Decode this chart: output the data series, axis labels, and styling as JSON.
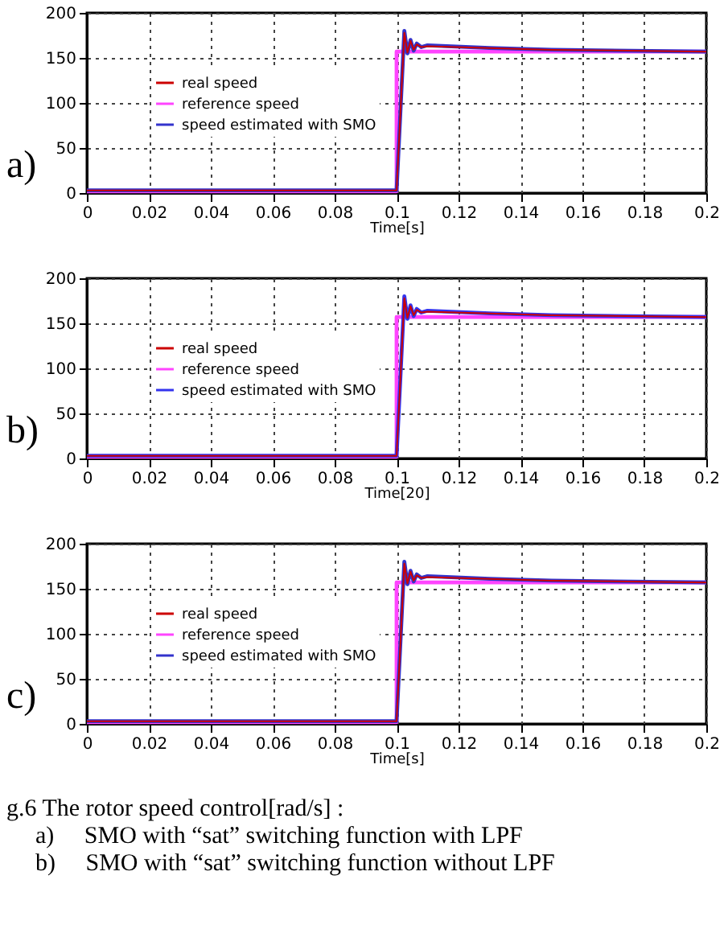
{
  "chart_data": [
    {
      "type": "line",
      "xlabel": "Time[s]",
      "annotations": [
        "a)"
      ],
      "xlim": [
        0,
        0.2
      ],
      "ylim": [
        0,
        200
      ],
      "xticks": [
        0,
        0.02,
        0.04,
        0.06,
        0.08,
        0.1,
        0.12,
        0.14,
        0.16,
        0.18,
        0.2
      ],
      "yticks": [
        0,
        50,
        100,
        150,
        200
      ],
      "grid": true,
      "legend": "left",
      "line_style": "solid",
      "series": [
        {
          "name": "real speed",
          "color": "#cc0000",
          "x": [
            0,
            0.1,
            0.1025,
            0.1035,
            0.1045,
            0.1055,
            0.1065,
            0.108,
            0.11,
            0.13,
            0.15,
            0.2
          ],
          "values": [
            3,
            3,
            178,
            156,
            169,
            159,
            165,
            162,
            163,
            161,
            159,
            157
          ]
        },
        {
          "name": "reference speed",
          "color": "#ff44ff",
          "x": [
            0,
            0.1,
            0.1,
            0.2
          ],
          "values": [
            2,
            2,
            157,
            157
          ]
        },
        {
          "name": "speed estimated with SMO",
          "color": "#3333cc",
          "x": [
            0,
            0.1,
            0.1025,
            0.1035,
            0.1045,
            0.1055,
            0.1065,
            0.108,
            0.11,
            0.13,
            0.15,
            0.2
          ],
          "values": [
            3,
            3,
            180,
            155,
            170,
            158,
            166,
            162,
            164,
            161,
            159,
            157
          ]
        }
      ]
    },
    {
      "type": "line",
      "xlabel": "Time[20]",
      "annotations": [
        "b)"
      ],
      "xlim": [
        0,
        0.2
      ],
      "ylim": [
        0,
        200
      ],
      "xticks": [
        0,
        0.02,
        0.04,
        0.06,
        0.08,
        0.1,
        0.12,
        0.14,
        0.16,
        0.18,
        0.2
      ],
      "yticks": [
        0,
        50,
        100,
        150,
        200
      ],
      "grid": true,
      "legend": "left",
      "line_style": "solid",
      "series": [
        {
          "name": "real speed",
          "color": "#cc0000",
          "x": [
            0,
            0.1,
            0.1025,
            0.1035,
            0.1045,
            0.1055,
            0.1065,
            0.108,
            0.11,
            0.13,
            0.15,
            0.2
          ],
          "values": [
            3,
            3,
            178,
            156,
            169,
            159,
            165,
            162,
            163,
            161,
            159,
            157
          ]
        },
        {
          "name": "reference speed",
          "color": "#ff44ff",
          "x": [
            0,
            0.1,
            0.1,
            0.2
          ],
          "values": [
            2,
            2,
            157,
            157
          ]
        },
        {
          "name": "speed estimated with SMO",
          "color": "#3333ee",
          "x": [
            0,
            0.1,
            0.1025,
            0.1035,
            0.1045,
            0.1055,
            0.1065,
            0.108,
            0.11,
            0.13,
            0.15,
            0.2
          ],
          "values": [
            3,
            3,
            180,
            155,
            170,
            158,
            166,
            162,
            164,
            161,
            159,
            157
          ]
        }
      ]
    },
    {
      "type": "line",
      "xlabel": "Time[s]",
      "annotations": [
        "c)",
        "g.6 The rotor speed control[rad/s] :",
        "a)     SMO with “sat” switching function with LPF",
        "b)     SMO with “sat” switching function without LPF"
      ],
      "xlim": [
        0,
        0.2
      ],
      "ylim": [
        0,
        200
      ],
      "xticks": [
        0,
        0.02,
        0.04,
        0.06,
        0.08,
        0.1,
        0.12,
        0.14,
        0.16,
        0.18,
        0.2
      ],
      "yticks": [
        0,
        50,
        100,
        150,
        200
      ],
      "grid": true,
      "legend": "left",
      "line_style": "solid",
      "series": [
        {
          "name": "real speed",
          "color": "#cc0000",
          "x": [
            0,
            0.1,
            0.1025,
            0.1035,
            0.1045,
            0.1055,
            0.1065,
            0.108,
            0.11,
            0.13,
            0.15,
            0.2
          ],
          "values": [
            3,
            3,
            178,
            156,
            169,
            159,
            165,
            162,
            163,
            161,
            159,
            157
          ]
        },
        {
          "name": "reference speed",
          "color": "#ff44ff",
          "x": [
            0,
            0.1,
            0.1,
            0.2
          ],
          "values": [
            2,
            2,
            157,
            157
          ]
        },
        {
          "name": "speed estimated with SMO",
          "color": "#3333cc",
          "x": [
            0,
            0.1,
            0.1025,
            0.1035,
            0.1045,
            0.1055,
            0.1065,
            0.108,
            0.11,
            0.13,
            0.15,
            0.2
          ],
          "values": [
            3,
            3,
            180,
            155,
            170,
            158,
            166,
            162,
            164,
            161,
            159,
            157
          ]
        }
      ]
    }
  ]
}
